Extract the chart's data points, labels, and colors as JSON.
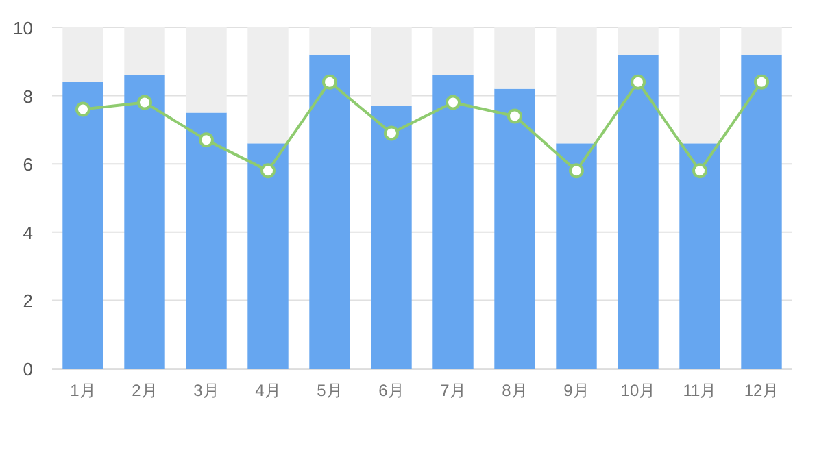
{
  "chart_data": {
    "type": "bar",
    "stacked": true,
    "categories": [
      "1月",
      "2月",
      "3月",
      "4月",
      "5月",
      "6月",
      "7月",
      "8月",
      "9月",
      "10月",
      "11月",
      "12月"
    ],
    "series": [
      {
        "color": "#66a6f0",
        "values": [
          8.4,
          8.6,
          7.5,
          6.6,
          9.2,
          7.7,
          8.6,
          8.2,
          6.6,
          9.2,
          6.6,
          9.2
        ]
      },
      {
        "color": "#eeeeee",
        "values": [
          1.6,
          1.4,
          2.5,
          3.4,
          0.8,
          2.3,
          1.4,
          1.8,
          3.4,
          0.8,
          3.4,
          0.8
        ]
      },
      {
        "type": "line",
        "color": "#8fcb6f",
        "marker": "circle",
        "values": [
          7.6,
          7.8,
          6.7,
          5.8,
          8.4,
          6.9,
          7.8,
          7.4,
          5.8,
          8.4,
          5.8,
          8.4
        ]
      }
    ],
    "ylim": [
      0,
      10
    ],
    "yticks": [
      0,
      2,
      4,
      6,
      8,
      10
    ],
    "grid": "y"
  }
}
